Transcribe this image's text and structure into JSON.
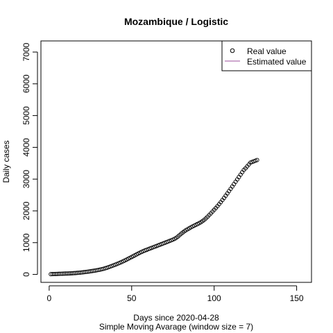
{
  "chart_data": {
    "type": "scatter",
    "title": "Mozambique / Logistic",
    "xlabel": "Days since 2020-04-28",
    "subtitle": "Simple Moving Avarage (window size = 7)",
    "ylabel": "Daily cases",
    "xlim": [
      -5,
      159
    ],
    "ylim": [
      -250,
      7350
    ],
    "xticks": [
      0,
      50,
      100,
      150
    ],
    "yticks": [
      0,
      1000,
      2000,
      3000,
      4000,
      5000,
      6000,
      7000
    ],
    "legend_position": "top-right",
    "series": [
      {
        "name": "Real value",
        "marker": "open-circle",
        "color": "#000000",
        "x": [
          1,
          2,
          3,
          4,
          5,
          6,
          7,
          8,
          9,
          10,
          11,
          12,
          13,
          14,
          15,
          16,
          17,
          18,
          19,
          20,
          21,
          22,
          23,
          24,
          25,
          26,
          27,
          28,
          29,
          30,
          31,
          32,
          33,
          34,
          35,
          36,
          37,
          38,
          39,
          40,
          41,
          42,
          43,
          44,
          45,
          46,
          47,
          48,
          49,
          50,
          51,
          52,
          53,
          54,
          55,
          56,
          57,
          58,
          59,
          60,
          61,
          62,
          63,
          64,
          65,
          66,
          67,
          68,
          69,
          70,
          71,
          72,
          73,
          74,
          75,
          76,
          77,
          78,
          79,
          80,
          81,
          82,
          83,
          84,
          85,
          86,
          87,
          88,
          89,
          90,
          91,
          92,
          93,
          94,
          95,
          96,
          97,
          98,
          99,
          100,
          101,
          102,
          103,
          104,
          105,
          106,
          107,
          108,
          109,
          110,
          111,
          112,
          113,
          114,
          115,
          116,
          117,
          118,
          119,
          120,
          121,
          122,
          123,
          124,
          125,
          126
        ],
        "y": [
          8,
          10,
          12,
          14,
          16,
          18,
          20,
          22,
          24,
          26,
          28,
          30,
          33,
          36,
          40,
          44,
          48,
          53,
          58,
          64,
          70,
          76,
          83,
          90,
          98,
          106,
          114,
          123,
          132,
          142,
          153,
          165,
          178,
          193,
          210,
          228,
          247,
          266,
          286,
          306,
          327,
          348,
          370,
          393,
          417,
          442,
          468,
          495,
          522,
          549,
          576,
          603,
          630,
          657,
          683,
          708,
          731,
          753,
          773,
          793,
          813,
          833,
          853,
          873,
          893,
          913,
          933,
          953,
          973,
          993,
          1013,
          1033,
          1053,
          1074,
          1096,
          1120,
          1150,
          1190,
          1235,
          1280,
          1320,
          1360,
          1395,
          1425,
          1455,
          1485,
          1512,
          1538,
          1563,
          1588,
          1615,
          1645,
          1680,
          1720,
          1765,
          1815,
          1868,
          1922,
          1977,
          2033,
          2090,
          2148,
          2210,
          2275,
          2340,
          2408,
          2478,
          2550,
          2622,
          2695,
          2768,
          2842,
          2916,
          2990,
          3065,
          3140,
          3215,
          3290,
          3340,
          3400,
          3460,
          3520,
          3540,
          3560,
          3580,
          3600
        ]
      },
      {
        "name": "Estimated value",
        "marker": "line",
        "color": "#9b4d9b"
      }
    ]
  }
}
